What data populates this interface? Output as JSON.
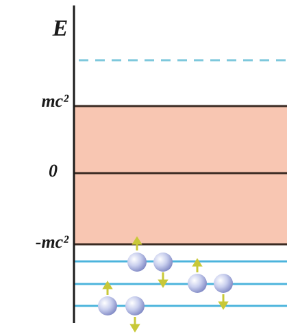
{
  "axis_label": "E",
  "levels": {
    "upper": "mc²",
    "zero": "0",
    "lower": "-mc²"
  }
}
